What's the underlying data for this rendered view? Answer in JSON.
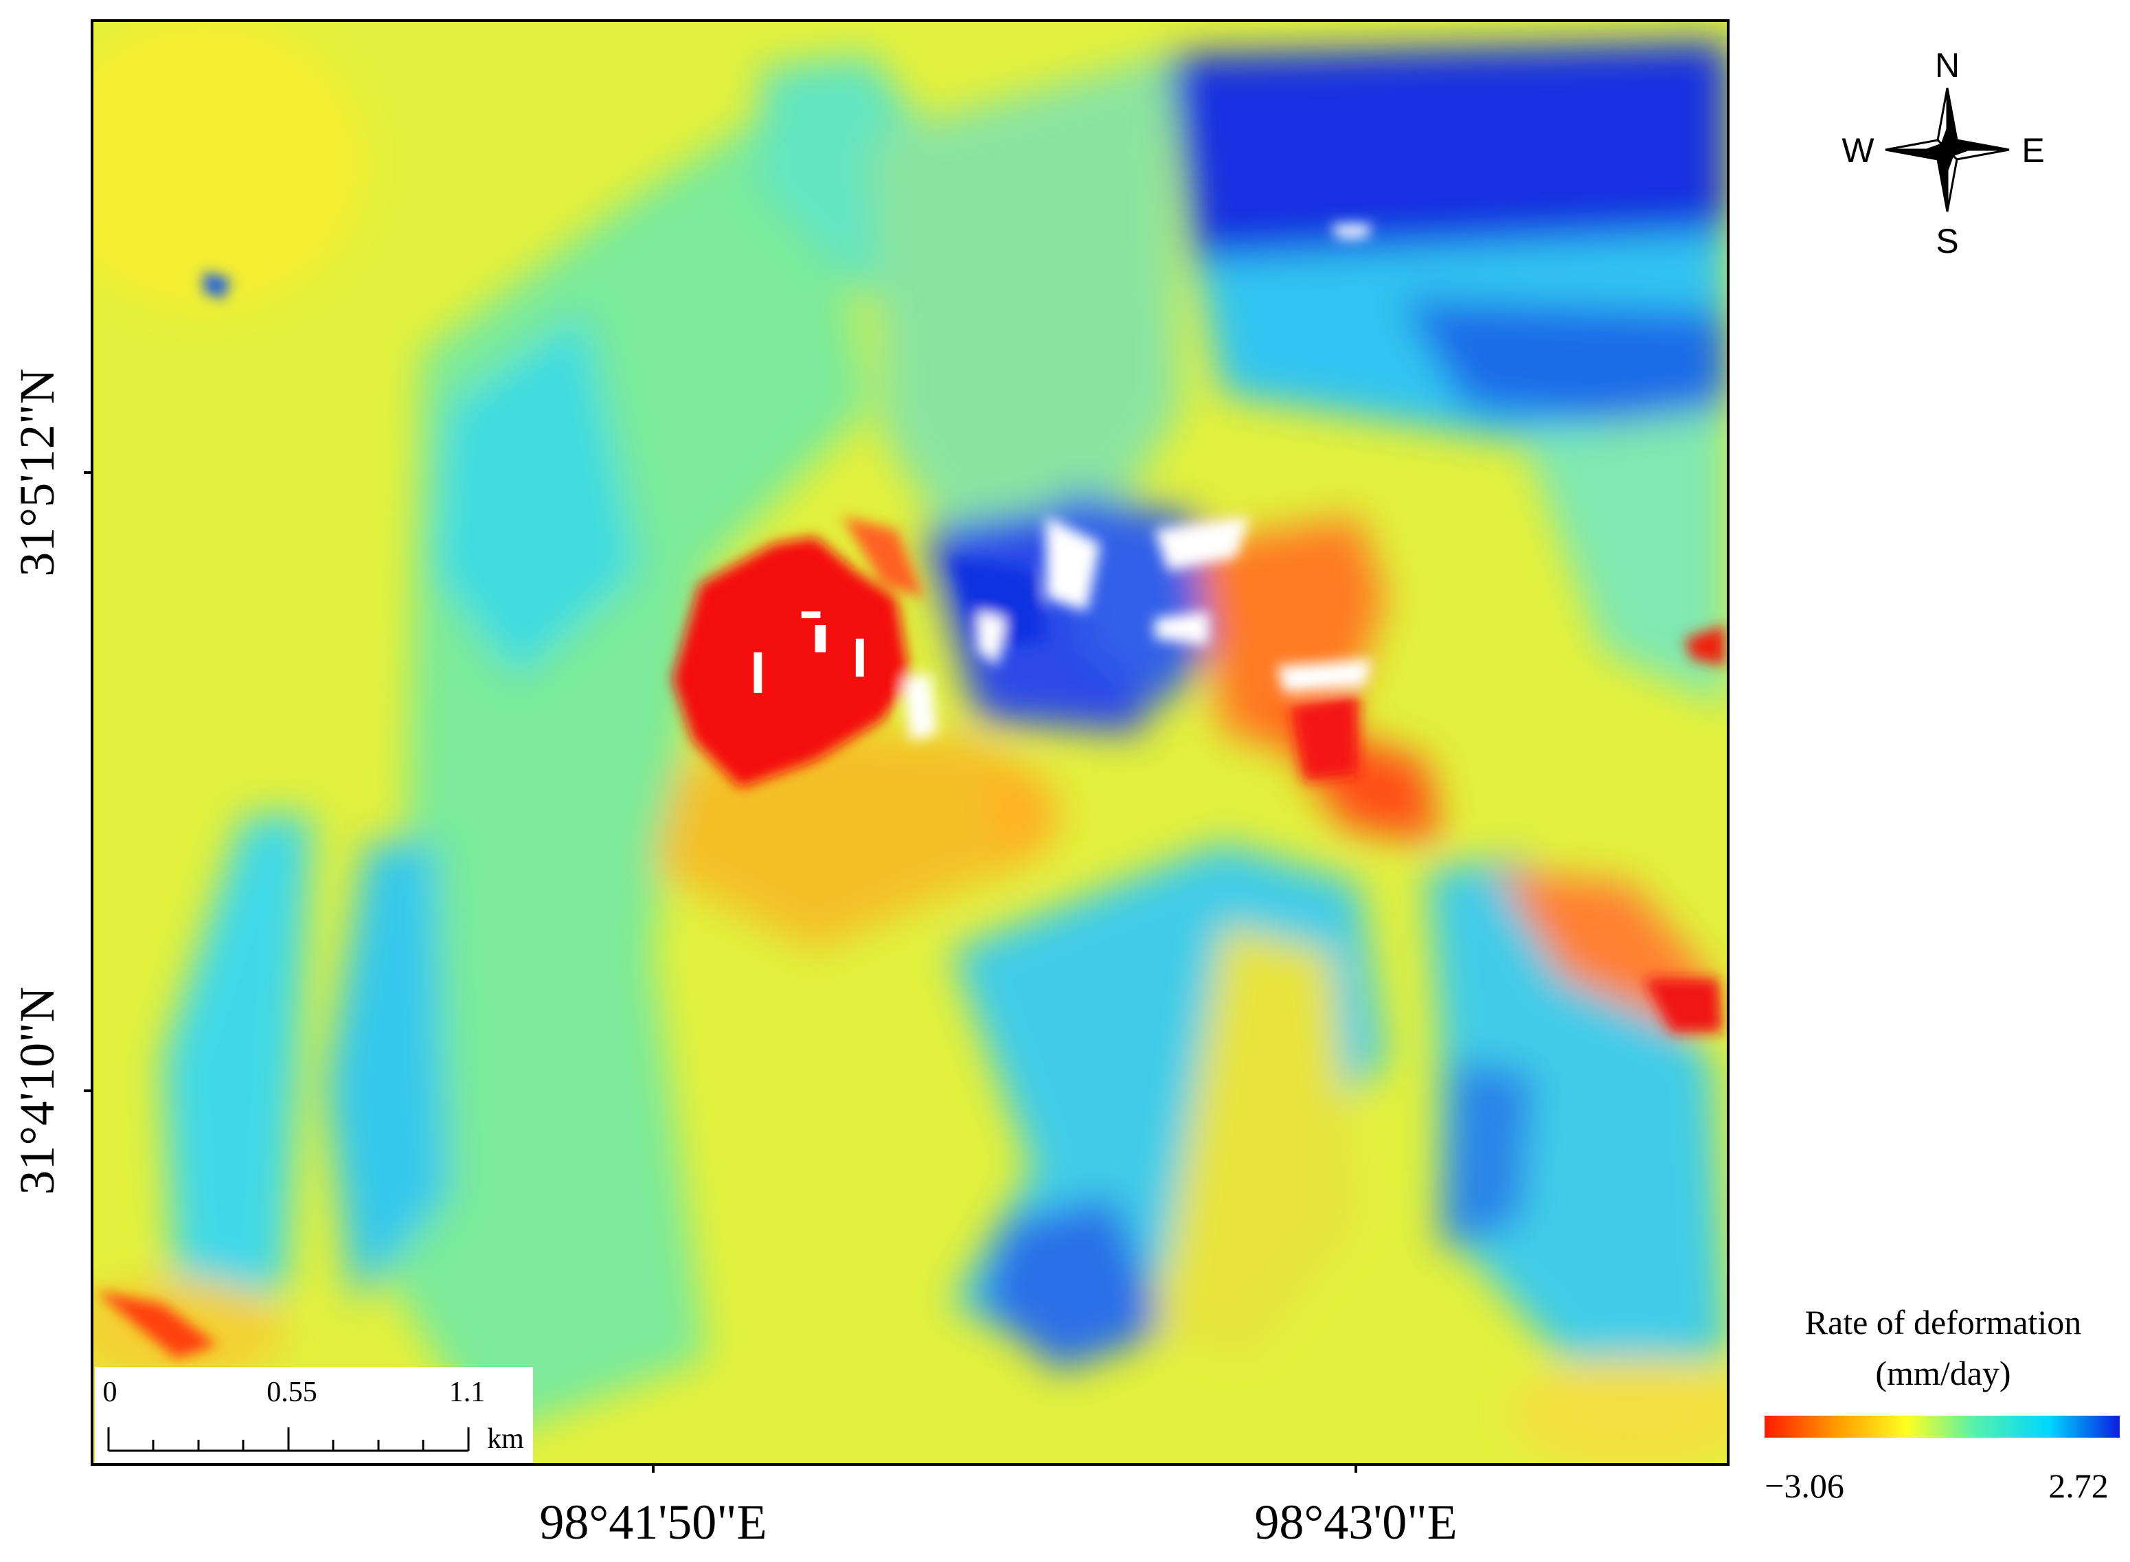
{
  "map": {
    "y_labels": [
      "31°5'12\"N",
      "31°4'10\"N"
    ],
    "x_labels": [
      "98°41'50\"E",
      "98°43'0\"E"
    ]
  },
  "compass": {
    "north": "N",
    "south": "S",
    "west": "W",
    "east": "E"
  },
  "scale_bar": {
    "labels": [
      "0",
      "0.55",
      "1.1"
    ],
    "unit": "km"
  },
  "legend": {
    "title": "Rate of deformation",
    "unit": "(mm/day)",
    "min_label": "−3.06",
    "max_label": "2.72",
    "colors": [
      "#ff1a00",
      "#ff9a00",
      "#ffff20",
      "#50f0b0",
      "#00d8ff",
      "#0a1ee0"
    ]
  }
}
